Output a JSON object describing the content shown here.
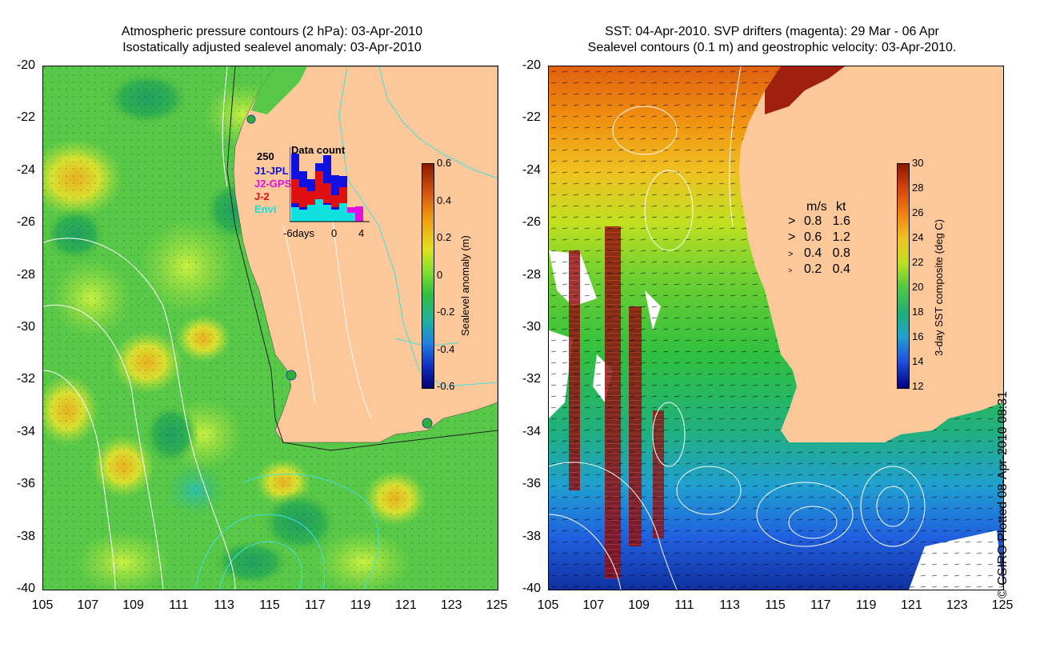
{
  "left_panel": {
    "title_line1": "Atmospheric pressure contours (2 hPa): 03-Apr-2010",
    "title_line2": "Isostatically adjusted sealevel anomaly: 03-Apr-2010",
    "colorbar": {
      "label": "Sealevel anomaly (m)",
      "ticks": [
        "0.6",
        "0.4",
        "0.2",
        "0",
        "-0.2",
        "-0.4",
        "-0.6"
      ]
    },
    "inset": {
      "title": "Data count",
      "ymax_label": "250",
      "xticks": [
        "-6days",
        "0",
        "4"
      ],
      "series": [
        {
          "name": "J1-JPL",
          "color": "#1010e0"
        },
        {
          "name": "J2-GPS",
          "color": "#e010e0"
        },
        {
          "name": "J-2",
          "color": "#e01010"
        },
        {
          "name": "Envi",
          "color": "#10e0e0"
        }
      ]
    }
  },
  "right_panel": {
    "title_line1": "SST: 04-Apr-2010. SVP drifters (magenta): 29 Mar - 06 Apr",
    "title_line2": "Sealevel contours (0.1 m) and geostrophic velocity: 03-Apr-2010.",
    "colorbar": {
      "label": "3-day SST composite (deg C)",
      "ticks": [
        "30",
        "28",
        "26",
        "24",
        "22",
        "20",
        "18",
        "16",
        "14",
        "12"
      ]
    },
    "velocity_legend": {
      "header_ms": "m/s",
      "header_kt": "kt",
      "rows": [
        {
          "ms": "0.8",
          "kt": "1.6"
        },
        {
          "ms": "0.6",
          "kt": "1.2"
        },
        {
          "ms": "0.4",
          "kt": "0.8"
        },
        {
          "ms": "0.2",
          "kt": "0.4"
        }
      ]
    }
  },
  "axes": {
    "lat_ticks": [
      "-20",
      "-22",
      "-24",
      "-26",
      "-28",
      "-30",
      "-32",
      "-34",
      "-36",
      "-38",
      "-40"
    ],
    "lon_ticks": [
      "105",
      "107",
      "109",
      "111",
      "113",
      "115",
      "117",
      "119",
      "121",
      "123",
      "125"
    ]
  },
  "credit": "© CSIRO Plotted 08-Apr-2010 08:31",
  "colors": {
    "land": "#fcc89a",
    "sea_green": "#3cc03c",
    "contour_white": "#ffffff",
    "contour_cyan": "#40e0e0"
  }
}
